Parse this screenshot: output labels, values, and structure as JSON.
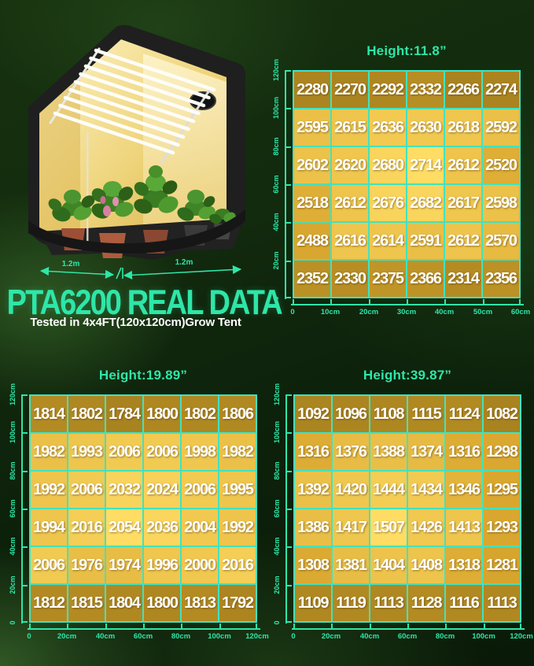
{
  "hero": {
    "title": "PTA6200 REAL DATA",
    "subtitle": "Tested in 4x4FT(120x120cm)Grow Tent",
    "tent": {
      "left_width_label": "1.2m",
      "right_width_label": "1.2m"
    }
  },
  "colors": {
    "accent": "#2ee6a8",
    "grid_line": "#41e2c0",
    "cell_low": "#a9831f",
    "cell_mid": "#d9a72f",
    "cell_high": "#ffdd65",
    "value_text": "#ffffff"
  },
  "chart_data": [
    {
      "type": "heatmap",
      "title": "Height:11.8”",
      "x_ticks": [
        "0",
        "10cm",
        "20cm",
        "30cm",
        "40cm",
        "50cm",
        "60cm"
      ],
      "y_ticks_top_to_bottom": [
        "120cm",
        "100cm",
        "80cm",
        "60cm",
        "40cm",
        "20cm",
        "0"
      ],
      "values": [
        [
          2280,
          2270,
          2292,
          2332,
          2266,
          2274
        ],
        [
          2595,
          2615,
          2636,
          2630,
          2618,
          2592
        ],
        [
          2602,
          2620,
          2680,
          2714,
          2612,
          2520
        ],
        [
          2518,
          2612,
          2676,
          2682,
          2617,
          2598
        ],
        [
          2488,
          2616,
          2614,
          2591,
          2612,
          2570
        ],
        [
          2352,
          2330,
          2375,
          2366,
          2314,
          2356
        ]
      ]
    },
    {
      "type": "heatmap",
      "title": "Height:19.89”",
      "x_ticks": [
        "0",
        "20cm",
        "40cm",
        "60cm",
        "80cm",
        "100cm",
        "120cm"
      ],
      "y_ticks_top_to_bottom": [
        "120cm",
        "100cm",
        "80cm",
        "60cm",
        "40cm",
        "20cm",
        "0"
      ],
      "values": [
        [
          1814,
          1802,
          1784,
          1800,
          1802,
          1806
        ],
        [
          1982,
          1993,
          2006,
          2006,
          1998,
          1982
        ],
        [
          1992,
          2006,
          2032,
          2024,
          2006,
          1995
        ],
        [
          1994,
          2016,
          2054,
          2036,
          2004,
          1992
        ],
        [
          2006,
          1976,
          1974,
          1996,
          2000,
          2016
        ],
        [
          1812,
          1815,
          1804,
          1800,
          1813,
          1792
        ]
      ]
    },
    {
      "type": "heatmap",
      "title": "Height:39.87”",
      "x_ticks": [
        "0",
        "20cm",
        "40cm",
        "60cm",
        "80cm",
        "100cm",
        "120cm"
      ],
      "y_ticks_top_to_bottom": [
        "120cm",
        "100cm",
        "80cm",
        "60cm",
        "40cm",
        "20cm",
        "0"
      ],
      "values": [
        [
          1092,
          1096,
          1108,
          1115,
          1124,
          1082
        ],
        [
          1316,
          1376,
          1388,
          1374,
          1316,
          1298
        ],
        [
          1392,
          1420,
          1444,
          1434,
          1346,
          1295
        ],
        [
          1386,
          1417,
          1507,
          1426,
          1413,
          1293
        ],
        [
          1308,
          1381,
          1404,
          1408,
          1318,
          1281
        ],
        [
          1109,
          1119,
          1113,
          1128,
          1116,
          1113
        ]
      ]
    }
  ]
}
